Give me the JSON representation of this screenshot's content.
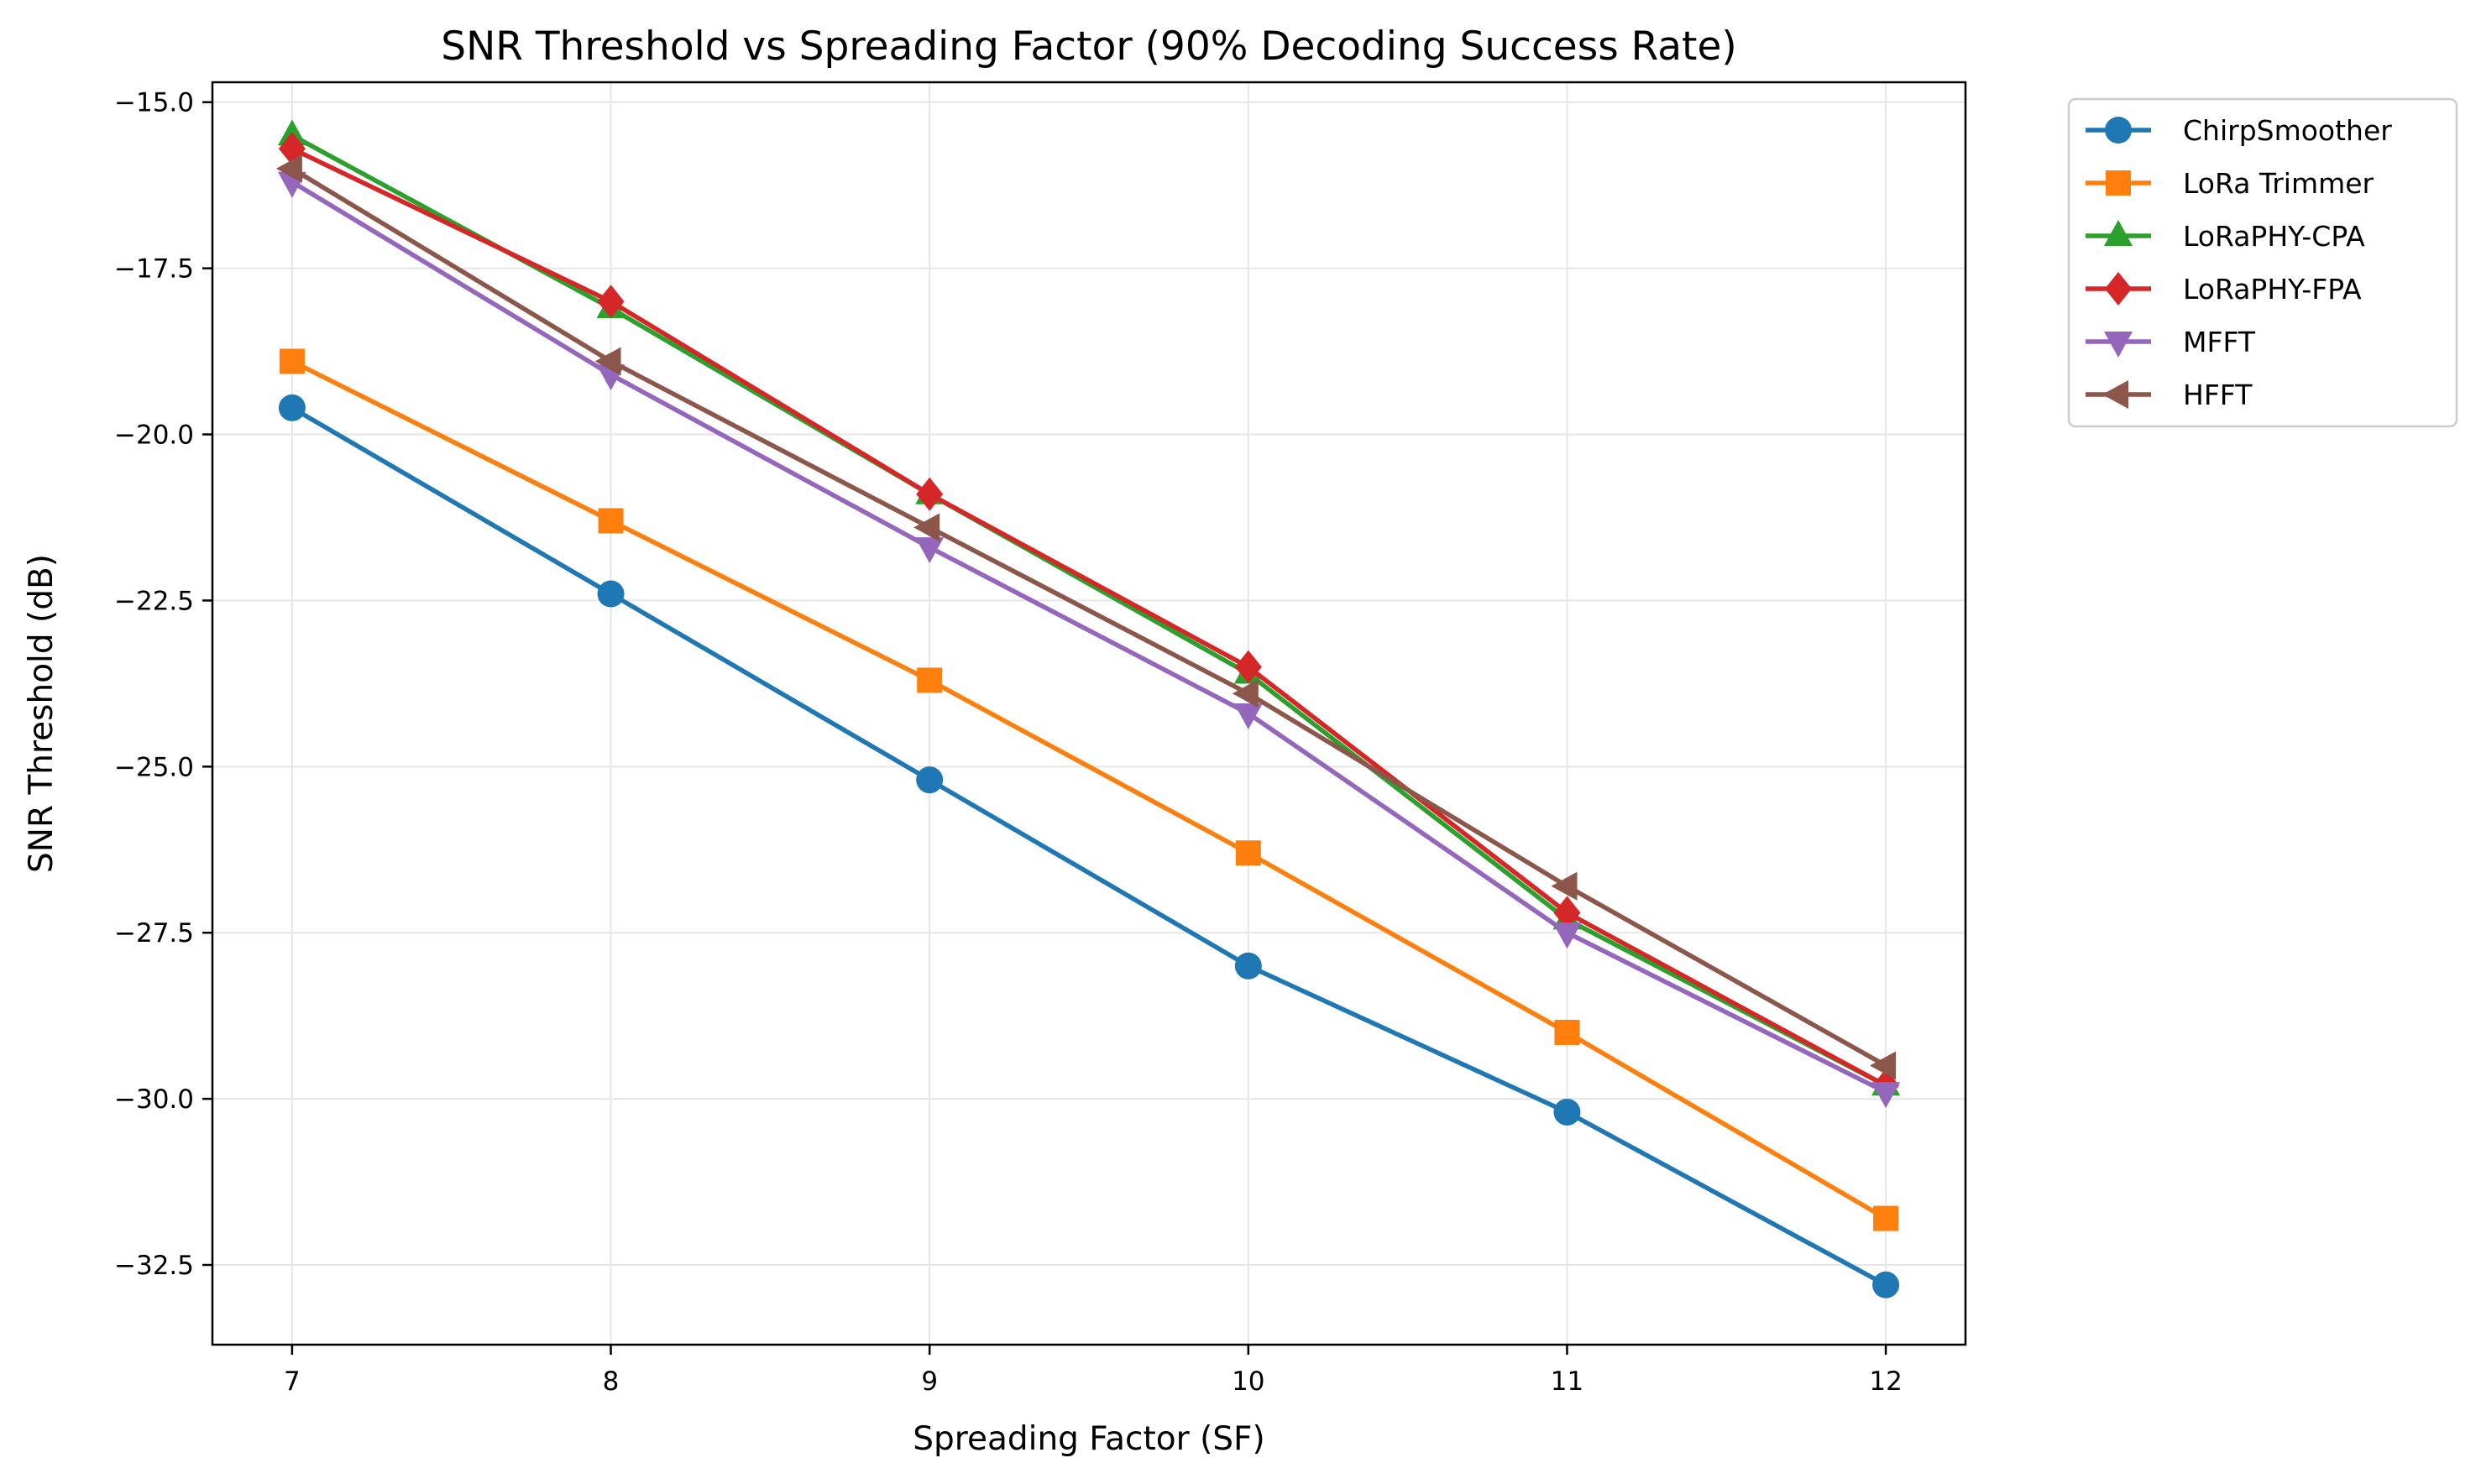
{
  "chart_data": {
    "type": "line",
    "title": "SNR Threshold vs Spreading Factor (90% Decoding Success Rate)",
    "xlabel": "Spreading Factor (SF)",
    "ylabel": "SNR Threshold (dB)",
    "x": [
      7,
      8,
      9,
      10,
      11,
      12
    ],
    "x_tick_labels": [
      "7",
      "8",
      "9",
      "10",
      "11",
      "12"
    ],
    "xlim": [
      6.75,
      12.25
    ],
    "ylim": [
      -33.7,
      -14.7
    ],
    "y_ticks": [
      -15.0,
      -17.5,
      -20.0,
      -22.5,
      -25.0,
      -27.5,
      -30.0,
      -32.5
    ],
    "y_tick_labels": [
      "−15.0",
      "−17.5",
      "−20.0",
      "−22.5",
      "−25.0",
      "−27.5",
      "−30.0",
      "−32.5"
    ],
    "grid": true,
    "legend_position": "outside upper right",
    "series": [
      {
        "name": "ChirpSmoother",
        "color": "#1f77b4",
        "marker": "circle",
        "values": [
          -19.6,
          -22.4,
          -25.2,
          -28.0,
          -30.2,
          -32.8
        ]
      },
      {
        "name": "LoRa Trimmer",
        "color": "#ff7f0e",
        "marker": "square",
        "values": [
          -18.9,
          -21.3,
          -23.7,
          -26.3,
          -29.0,
          -31.8
        ]
      },
      {
        "name": "LoRaPHY-CPA",
        "color": "#2ca02c",
        "marker": "triangle-up",
        "values": [
          -15.5,
          -18.1,
          -20.9,
          -23.6,
          -27.3,
          -29.8
        ]
      },
      {
        "name": "LoRaPHY-FPA",
        "color": "#d62728",
        "marker": "diamond",
        "values": [
          -15.7,
          -18.0,
          -20.9,
          -23.5,
          -27.2,
          -29.8
        ]
      },
      {
        "name": "MFFT",
        "color": "#9467bd",
        "marker": "triangle-down",
        "values": [
          -16.2,
          -19.1,
          -21.7,
          -24.2,
          -27.5,
          -29.9
        ]
      },
      {
        "name": "HFFT",
        "color": "#8c564b",
        "marker": "triangle-left",
        "values": [
          -16.0,
          -18.9,
          -21.4,
          -23.9,
          -26.8,
          -29.5
        ]
      }
    ]
  }
}
